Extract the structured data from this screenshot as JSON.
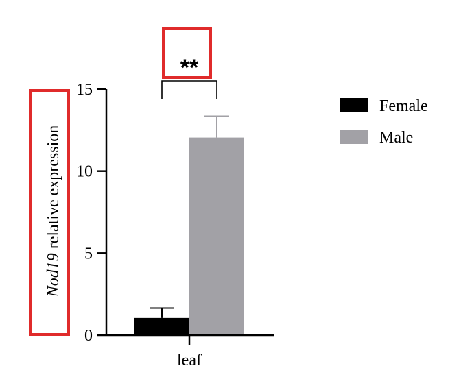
{
  "colors": {
    "female": "#000000",
    "male": "#a2a1a6",
    "highlight": "#e02b2b",
    "axis": "#000000"
  },
  "chart_data": {
    "type": "bar",
    "categories": [
      "leaf"
    ],
    "series": [
      {
        "name": "Female",
        "values": [
          1.05
        ],
        "error": [
          0.6
        ]
      },
      {
        "name": "Male",
        "values": [
          12.05
        ],
        "error": [
          1.3
        ]
      }
    ],
    "yticks": [
      0,
      5,
      10,
      15
    ],
    "ylim": [
      0,
      15
    ],
    "ylabel_italic": "Nod19",
    "ylabel_rest": " relative expression",
    "significance": "**",
    "legend_position": "top-right",
    "grid": false
  }
}
